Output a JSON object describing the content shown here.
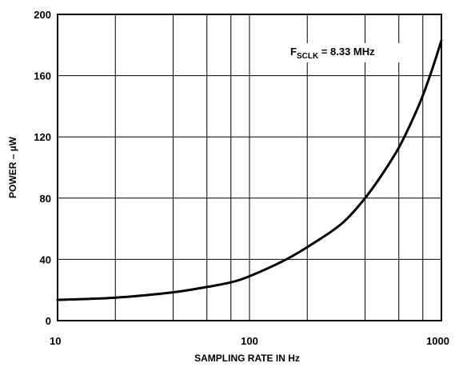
{
  "chart_data": {
    "type": "line",
    "title": "",
    "xlabel": "SAMPLING RATE IN Hz",
    "ylabel": "POWER – µW",
    "x_scale": "log",
    "xlim": [
      10,
      1000
    ],
    "ylim": [
      0,
      200
    ],
    "x_ticks": [
      "10",
      "100",
      "1000"
    ],
    "y_ticks": [
      "0",
      "40",
      "80",
      "120",
      "160",
      "200"
    ],
    "grid": true,
    "annotation": {
      "main": "F",
      "sub": "SCLK",
      "rest": " = 8.33 MHz"
    },
    "series": [
      {
        "x": [
          10,
          20,
          40,
          60,
          80,
          100,
          150,
          200,
          300,
          400,
          500,
          600,
          700,
          800,
          900,
          1000
        ],
        "y": [
          13.5,
          15,
          18.5,
          22,
          25,
          29,
          39,
          48,
          63,
          80,
          97,
          113,
          130,
          147,
          165,
          183
        ]
      }
    ]
  }
}
